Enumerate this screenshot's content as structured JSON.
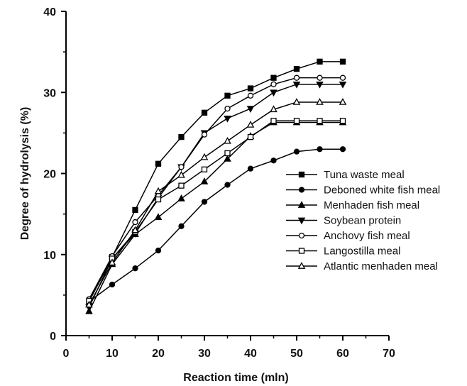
{
  "chart_data": {
    "type": "line",
    "title": "",
    "xlabel": "Reaction time (mln)",
    "ylabel": "Degree of hydrolysis (%)",
    "xlim": [
      0,
      70
    ],
    "ylim": [
      0,
      40
    ],
    "x_ticks": [
      0,
      10,
      20,
      30,
      40,
      50,
      60,
      70
    ],
    "y_ticks": [
      0,
      10,
      20,
      30,
      40
    ],
    "grid": false,
    "legend_position": "right",
    "series": [
      {
        "name": "Tuna waste meal",
        "marker": "filled-square",
        "x": [
          5,
          10,
          15,
          20,
          25,
          30,
          35,
          40,
          45,
          50,
          55,
          60
        ],
        "y": [
          4.2,
          9.7,
          15.5,
          21.2,
          24.5,
          27.5,
          29.6,
          30.5,
          31.8,
          32.9,
          33.8,
          33.8
        ]
      },
      {
        "name": "Deboned white fish meal",
        "marker": "filled-circle",
        "x": [
          5,
          10,
          15,
          20,
          25,
          30,
          35,
          40,
          45,
          50,
          55,
          60
        ],
        "y": [
          4.2,
          6.3,
          8.3,
          10.5,
          13.5,
          16.5,
          18.6,
          20.6,
          21.6,
          22.7,
          23.0,
          23.0
        ]
      },
      {
        "name": "Menhaden fish meal",
        "marker": "filled-triangle-up",
        "x": [
          5,
          10,
          15,
          20,
          25,
          30,
          35,
          40,
          45,
          50,
          55,
          60
        ],
        "y": [
          3.0,
          8.8,
          12.5,
          14.6,
          16.9,
          19.0,
          21.8,
          24.6,
          26.3,
          26.3,
          26.3,
          26.3
        ]
      },
      {
        "name": "Soybean protein",
        "marker": "filled-triangle-down",
        "x": [
          5,
          10,
          15,
          20,
          25,
          30,
          35,
          40,
          45,
          50,
          55,
          60
        ],
        "y": [
          3.5,
          9.5,
          12.6,
          17.0,
          20.8,
          25.0,
          26.8,
          28.0,
          30.0,
          31.0,
          31.0,
          31.0
        ]
      },
      {
        "name": "Anchovy fish meal",
        "marker": "open-circle",
        "x": [
          5,
          10,
          15,
          20,
          25,
          30,
          35,
          40,
          45,
          50,
          55,
          60
        ],
        "y": [
          4.5,
          9.8,
          14.0,
          17.3,
          20.8,
          24.8,
          28.0,
          29.6,
          31.0,
          31.8,
          31.8,
          31.8
        ]
      },
      {
        "name": "Langostilla meal",
        "marker": "open-square",
        "x": [
          5,
          10,
          15,
          20,
          25,
          30,
          35,
          40,
          45,
          50,
          55,
          60
        ],
        "y": [
          4.3,
          9.5,
          12.8,
          16.8,
          18.5,
          20.5,
          22.5,
          24.5,
          26.5,
          26.5,
          26.5,
          26.5
        ]
      },
      {
        "name": "Atlantic menhaden meal",
        "marker": "open-triangle-up",
        "x": [
          5,
          10,
          15,
          20,
          25,
          30,
          35,
          40,
          45,
          50,
          55,
          60
        ],
        "y": [
          3.8,
          9.0,
          13.0,
          17.8,
          19.8,
          22.0,
          24.0,
          26.0,
          27.9,
          28.8,
          28.8,
          28.8
        ]
      }
    ]
  }
}
